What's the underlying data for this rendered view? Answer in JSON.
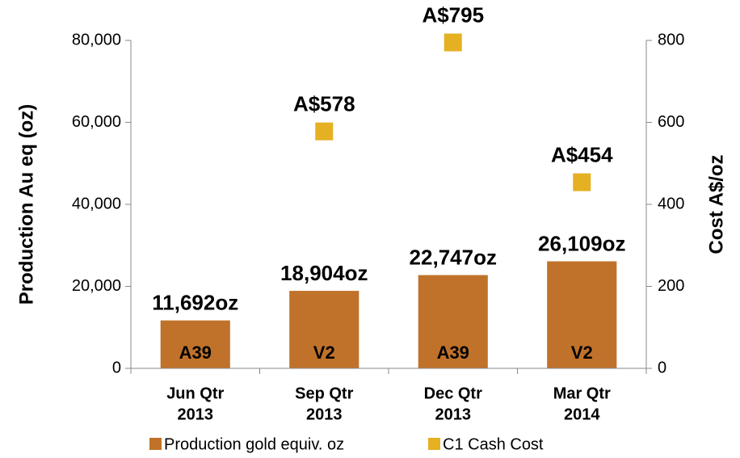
{
  "chart_data": {
    "type": "bar",
    "categories": [
      [
        "Jun Qtr",
        "2013"
      ],
      [
        "Sep Qtr",
        "2013"
      ],
      [
        "Dec Qtr",
        "2013"
      ],
      [
        "Mar Qtr",
        "2014"
      ]
    ],
    "series": [
      {
        "name": "Production gold equiv. oz",
        "type": "bar",
        "color": "#c0722a",
        "values": [
          11692,
          18904,
          22747,
          26109
        ],
        "value_labels": [
          "11,692oz",
          "18,904oz",
          "22,747oz",
          "26,109oz"
        ],
        "bar_labels": [
          "A39",
          "V2",
          "A39",
          "V2"
        ]
      },
      {
        "name": "C1 Cash Cost",
        "type": "scatter",
        "axis": "y2",
        "color": "#e5b022",
        "values": [
          null,
          578,
          795,
          454
        ],
        "value_labels": [
          null,
          "A$578",
          "A$795",
          "A$454"
        ]
      }
    ],
    "ylabel": "Production Au eq (oz)",
    "y2label": "Cost A$/oz",
    "ylim": [
      0,
      80000
    ],
    "yticks": [
      0,
      {
        "value": 20000,
        "label": "20,000"
      },
      {
        "value": 40000,
        "label": "40,000"
      },
      {
        "value": 60000,
        "label": "60,000"
      },
      {
        "value": 80000,
        "label": "80,000"
      }
    ],
    "y2lim": [
      0,
      800
    ],
    "y2ticks": [
      0,
      200,
      400,
      600,
      800
    ],
    "legend": "bottom"
  }
}
